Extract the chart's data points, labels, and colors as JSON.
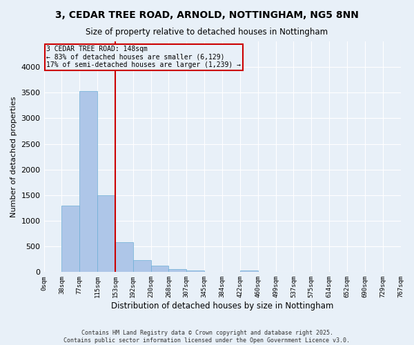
{
  "title": "3, CEDAR TREE ROAD, ARNOLD, NOTTINGHAM, NG5 8NN",
  "subtitle": "Size of property relative to detached houses in Nottingham",
  "xlabel": "Distribution of detached houses by size in Nottingham",
  "ylabel": "Number of detached properties",
  "bar_values": [
    0,
    1290,
    3530,
    1500,
    580,
    240,
    120,
    65,
    30,
    0,
    0,
    30,
    0,
    0,
    0,
    0,
    0,
    0,
    0,
    0
  ],
  "bin_labels": [
    "0sqm",
    "38sqm",
    "77sqm",
    "115sqm",
    "153sqm",
    "192sqm",
    "230sqm",
    "268sqm",
    "307sqm",
    "345sqm",
    "384sqm",
    "422sqm",
    "460sqm",
    "499sqm",
    "537sqm",
    "575sqm",
    "614sqm",
    "652sqm",
    "690sqm",
    "729sqm",
    "767sqm"
  ],
  "bar_color": "#aec6e8",
  "bar_edge_color": "#6aaed6",
  "vline_x_bin": 4,
  "vline_color": "#cc0000",
  "annotation_text": "3 CEDAR TREE ROAD: 148sqm\n← 83% of detached houses are smaller (6,129)\n17% of semi-detached houses are larger (1,239) →",
  "annotation_box_color": "#cc0000",
  "ylim": [
    0,
    4500
  ],
  "yticks": [
    0,
    500,
    1000,
    1500,
    2000,
    2500,
    3000,
    3500,
    4000
  ],
  "bg_color": "#e8f0f8",
  "grid_color": "#ffffff",
  "footer_line1": "Contains HM Land Registry data © Crown copyright and database right 2025.",
  "footer_line2": "Contains public sector information licensed under the Open Government Licence v3.0."
}
